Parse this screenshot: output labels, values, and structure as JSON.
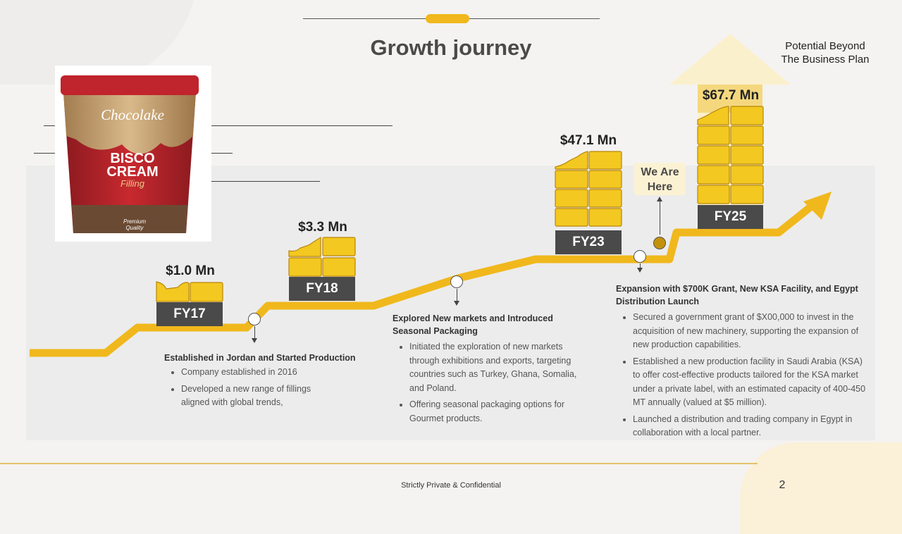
{
  "title": "Growth journey",
  "potential": {
    "line1": "Potential Beyond",
    "line2": "The Business Plan"
  },
  "product": {
    "brand": "Chocolake",
    "name_line1": "BISCO",
    "name_line2": "CREAM",
    "name_line3": "Filling",
    "badge": "Premium Quality"
  },
  "milestones": [
    {
      "value": "$1.0 Mn",
      "year": "FY17"
    },
    {
      "value": "$3.3 Mn",
      "year": "FY18"
    },
    {
      "value": "$47.1 Mn",
      "year": "FY23"
    },
    {
      "value": "$67.7 Mn",
      "year": "FY25"
    }
  ],
  "we_are_here": {
    "line1": "We Are",
    "line2": "Here"
  },
  "descriptions": [
    {
      "title": "Established in Jordan and Started Production",
      "bullets": [
        "Company established in 2016",
        "Developed a new range of fillings aligned with global trends,"
      ]
    },
    {
      "title": "Explored New markets and Introduced Seasonal Packaging",
      "bullets": [
        "Initiated the exploration of new markets through exhibitions and exports, targeting countries such as Turkey, Ghana, Somalia, and Poland.",
        "Offering seasonal packaging options for Gourmet products."
      ]
    },
    {
      "title": "Expansion with $700K Grant, New KSA Facility, and Egypt Distribution Launch",
      "bullets": [
        "Secured a government grant of $X00,000 to invest in the acquisition of new machinery, supporting the expansion of new production capabilities.",
        "Established a new production facility in Saudi Arabia (KSA) to offer cost-effective products tailored for the KSA market under a private label, with an estimated capacity of 400-450 MT annually (valued at $5 million).",
        "Launched a distribution and trading company in Egypt in collaboration with a local partner."
      ]
    }
  ],
  "footer": {
    "confidential": "Strictly Private & Confidential",
    "page": "2"
  },
  "colors": {
    "gold": "#f0b81c",
    "dark": "#4a4a4a",
    "panel": "#ececec"
  }
}
